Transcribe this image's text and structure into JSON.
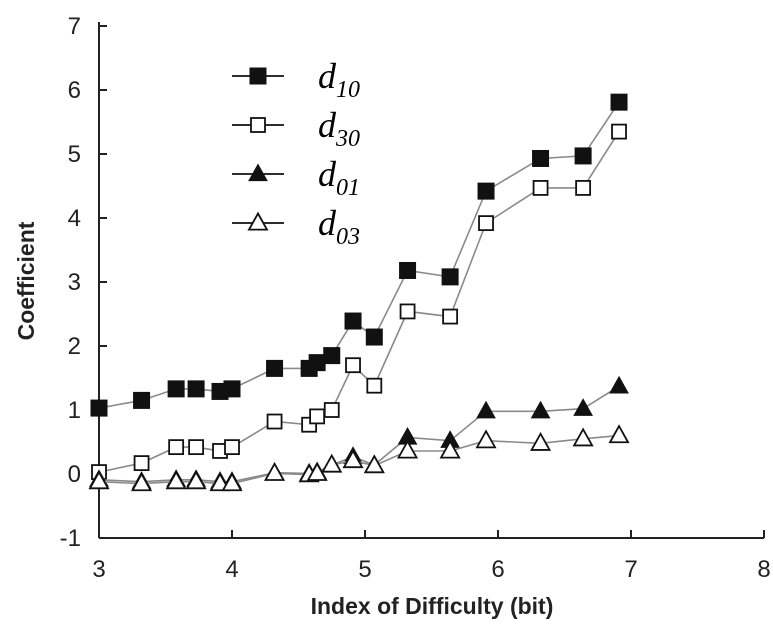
{
  "chart_data": {
    "type": "line",
    "xlabel": "Index of Difficulty (bit)",
    "ylabel": "Coefficient",
    "xlim": [
      3,
      8
    ],
    "ylim": [
      -1,
      7
    ],
    "xticks": [
      3,
      4,
      5,
      6,
      7,
      8
    ],
    "yticks": [
      -1,
      0,
      1,
      2,
      3,
      4,
      5,
      6,
      7
    ],
    "grid": false,
    "legend_position": "top-left",
    "x": [
      3.0,
      3.32,
      3.58,
      3.73,
      3.91,
      4.0,
      4.32,
      4.58,
      4.64,
      4.75,
      4.91,
      5.07,
      5.32,
      5.64,
      5.91,
      6.32,
      6.64,
      6.91
    ],
    "series": [
      {
        "name": "10",
        "marker": "square-filled",
        "values": [
          1.03,
          1.15,
          1.33,
          1.33,
          1.29,
          1.33,
          1.65,
          1.65,
          1.74,
          1.85,
          2.39,
          2.14,
          3.18,
          3.08,
          4.42,
          4.93,
          4.97,
          5.81
        ]
      },
      {
        "name": "30",
        "marker": "square-open",
        "values": [
          0.03,
          0.17,
          0.42,
          0.42,
          0.36,
          0.42,
          0.82,
          0.77,
          0.9,
          1.0,
          1.7,
          1.38,
          2.54,
          2.46,
          3.92,
          4.47,
          4.47,
          5.35
        ]
      },
      {
        "name": "01",
        "marker": "triangle-filled",
        "values": [
          -0.09,
          -0.12,
          -0.09,
          -0.09,
          -0.12,
          -0.12,
          0.02,
          0.01,
          0.03,
          0.14,
          0.27,
          0.14,
          0.57,
          0.52,
          0.98,
          0.98,
          1.02,
          1.37
        ]
      },
      {
        "name": "03",
        "marker": "triangle-open",
        "values": [
          -0.12,
          -0.15,
          -0.12,
          -0.12,
          -0.15,
          -0.15,
          0.01,
          -0.01,
          0.01,
          0.14,
          0.21,
          0.13,
          0.36,
          0.36,
          0.52,
          0.48,
          0.55,
          0.6
        ]
      }
    ],
    "legend_symbol": "d",
    "colors": {
      "filled": "#111111",
      "line": "#8a8a8a",
      "axis": "#222222"
    }
  }
}
